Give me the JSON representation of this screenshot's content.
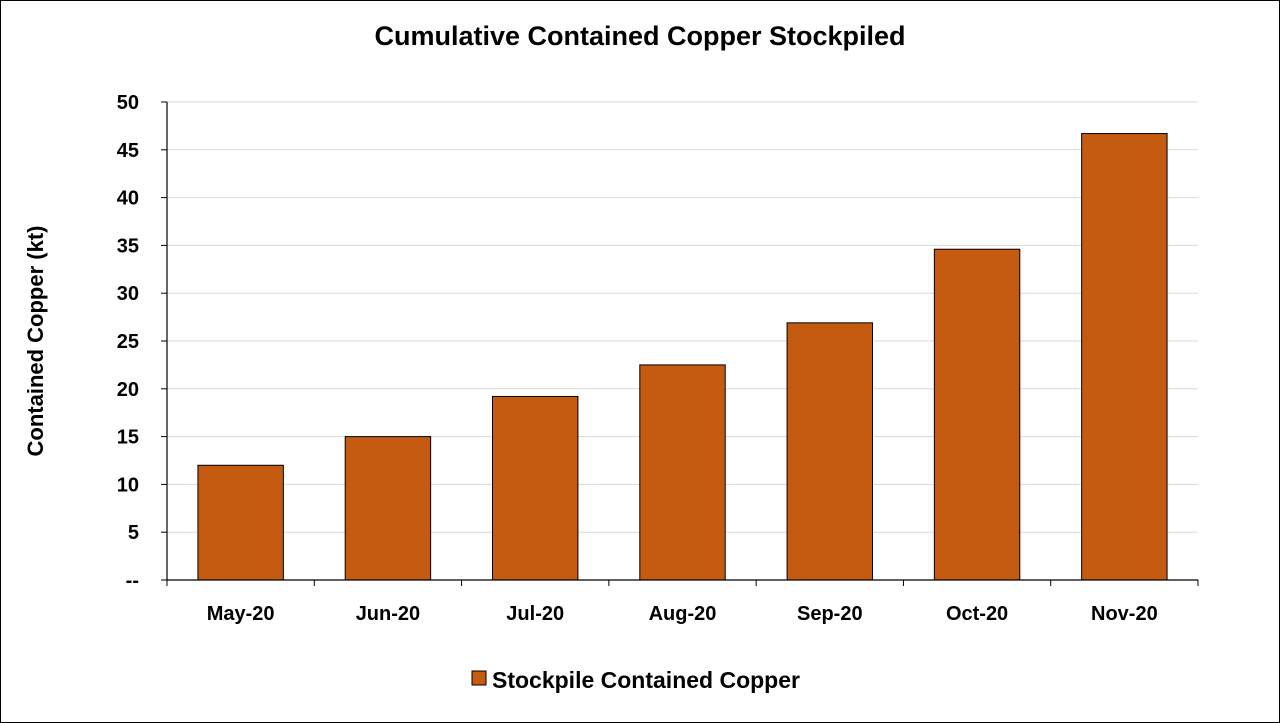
{
  "chart_data": {
    "type": "bar",
    "title": "Cumulative Contained Copper Stockpiled",
    "ylabel": "Contained Copper (kt)",
    "xlabel": "",
    "categories": [
      "May-20",
      "Jun-20",
      "Jul-20",
      "Aug-20",
      "Sep-20",
      "Oct-20",
      "Nov-20"
    ],
    "series": [
      {
        "name": "Stockpile Contained Copper",
        "values": [
          12.0,
          15.0,
          19.2,
          22.5,
          26.9,
          34.6,
          46.7
        ],
        "color": "#c55a11"
      }
    ],
    "ylim": [
      0,
      50
    ],
    "yticks": [
      {
        "value": 0,
        "label": "--"
      },
      {
        "value": 5,
        "label": "5"
      },
      {
        "value": 10,
        "label": "10"
      },
      {
        "value": 15,
        "label": "15"
      },
      {
        "value": 20,
        "label": "20"
      },
      {
        "value": 25,
        "label": "25"
      },
      {
        "value": 30,
        "label": "30"
      },
      {
        "value": 35,
        "label": "35"
      },
      {
        "value": 40,
        "label": "40"
      },
      {
        "value": 45,
        "label": "45"
      },
      {
        "value": 50,
        "label": "50"
      }
    ],
    "grid": true,
    "gridColor": "#d9d9d9",
    "legend": "bottom"
  }
}
